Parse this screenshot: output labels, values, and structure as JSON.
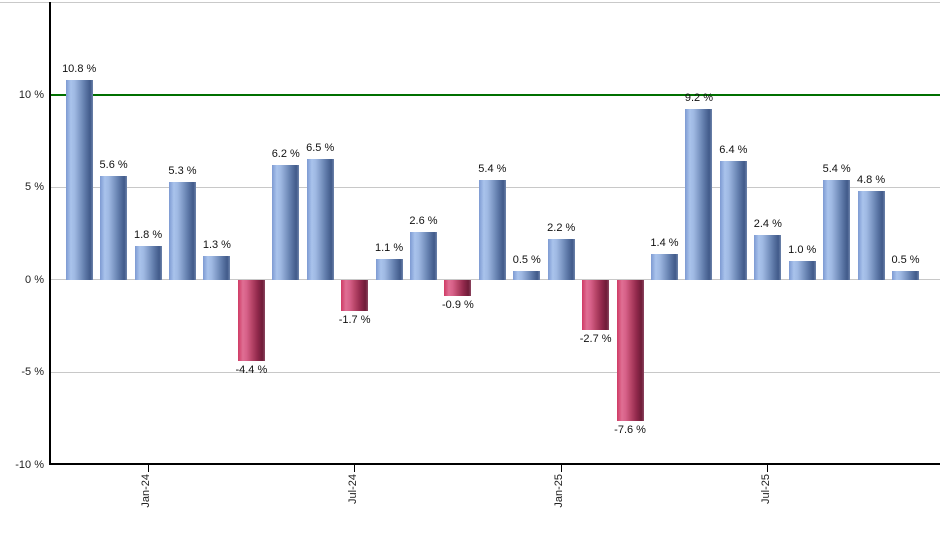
{
  "chart_data": {
    "type": "bar",
    "title": "",
    "xlabel": "",
    "ylabel": "",
    "ylim": [
      -10,
      15
    ],
    "grid": true,
    "legend": "none",
    "values": [
      10.8,
      5.6,
      1.8,
      5.3,
      1.3,
      -4.4,
      6.2,
      6.5,
      -1.7,
      1.1,
      2.6,
      -0.9,
      5.4,
      0.5,
      2.2,
      -2.7,
      -7.6,
      1.4,
      9.2,
      6.4,
      2.4,
      1.0,
      5.4,
      4.8,
      0.5
    ],
    "bar_labels": [
      "10.8 %",
      "5.6 %",
      "1.8 %",
      "5.3 %",
      "1.3 %",
      "-4.4 %",
      "6.2 %",
      "6.5 %",
      "-1.7 %",
      "1.1 %",
      "2.6 %",
      "-0.9 %",
      "5.4 %",
      "0.5 %",
      "2.2 %",
      "-2.7 %",
      "-7.6 %",
      "1.4 %",
      "9.2 %",
      "6.4 %",
      "2.4 %",
      "1.0 %",
      "5.4 %",
      "4.8 %",
      "0.5 %"
    ],
    "y_ticks": [
      {
        "value": 10,
        "label": "10 %",
        "gridline": "reference"
      },
      {
        "value": 5,
        "label": "5 %",
        "gridline": "normal"
      },
      {
        "value": 0,
        "label": "0 %",
        "gridline": "normal"
      },
      {
        "value": -5,
        "label": "-5 %",
        "gridline": "normal"
      },
      {
        "value": -10,
        "label": "-10 %",
        "gridline": "none"
      }
    ],
    "x_ticks": [
      {
        "bar_index": 2,
        "label": "Jan-24"
      },
      {
        "bar_index": 8,
        "label": "Jul-24"
      },
      {
        "bar_index": 14,
        "label": "Jan-25"
      },
      {
        "bar_index": 20,
        "label": "Jul-25"
      }
    ],
    "reference_line": {
      "value": 10,
      "color": "#007000"
    },
    "colors": {
      "positive_bar": "#7d9ad2",
      "positive_bar_highlight": "#a9c3ec",
      "positive_bar_shadow": "#415a8a",
      "negative_bar": "#cf3a64",
      "negative_bar_highlight": "#df6f94",
      "negative_bar_shadow": "#6f1c38",
      "gridline": "#c8c8c8",
      "axis": "#000000",
      "label_text": "#111111"
    }
  }
}
